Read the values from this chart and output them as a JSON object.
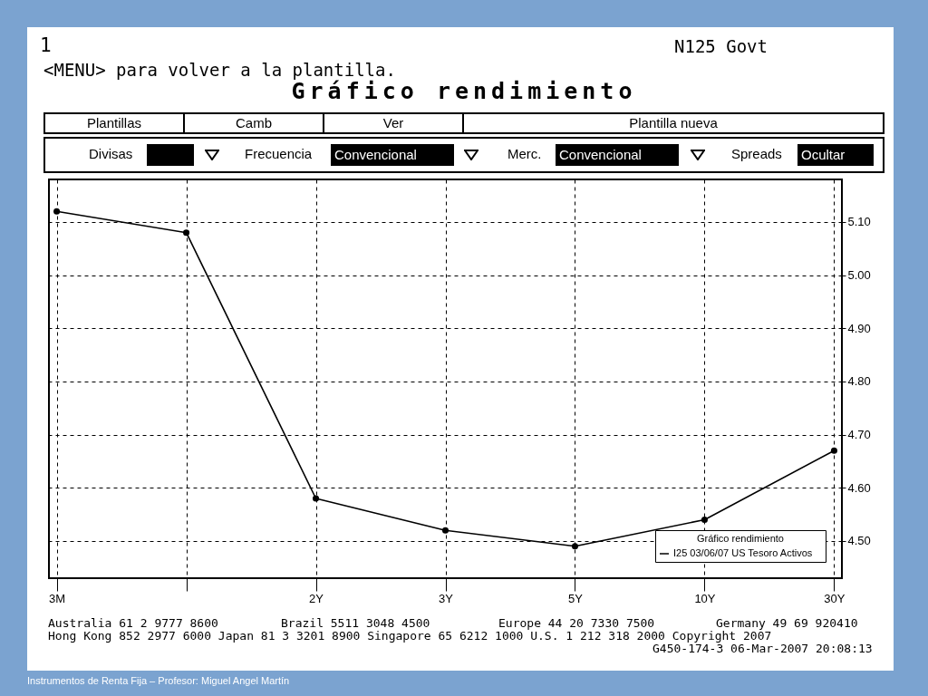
{
  "chart_data": {
    "type": "line",
    "title": "Gráfico rendimiento",
    "categories": [
      "3M",
      null,
      "2Y",
      "3Y",
      "5Y",
      "10Y",
      "30Y"
    ],
    "series": [
      {
        "name": "I25 03/06/07    US Tesoro Activos",
        "color": "#000000",
        "values": [
          5.12,
          5.08,
          4.58,
          4.52,
          4.49,
          4.54,
          4.67
        ]
      }
    ],
    "legend_title": "Gráfico rendimiento",
    "legend": "bottom right",
    "ylim": [
      4.43,
      5.18
    ],
    "yticks": [
      {
        "value": 4.5,
        "label": "4.50"
      },
      {
        "value": 4.6,
        "label": "4.60"
      },
      {
        "value": 4.7,
        "label": "4.70"
      },
      {
        "value": 4.8,
        "label": "4.80"
      },
      {
        "value": 4.9,
        "label": "4.90"
      },
      {
        "value": 5.0,
        "label": "5.00"
      },
      {
        "value": 5.1,
        "label": "5.10"
      }
    ],
    "grid": true,
    "marker": "circle",
    "line_style": "solid",
    "annotations": [
      "1",
      "N125 Govt",
      "<MENU> para volver a la plantilla.",
      "Plantillas",
      "Camb",
      "Ver",
      "Plantilla nueva",
      "Divisas",
      "Frecuencia",
      "Convencional",
      "Merc.",
      "Convencional",
      "Spreads",
      "Ocultar",
      "Australia 61 2 9777 8600",
      "Brazil 5511 3048 4500",
      "Europe 44 20 7330 7500",
      "Germany 49 69 920410",
      "Hong Kong 852 2977 6000 Japan 81 3 3201 8900 Singapore 65 6212 1000 U.S. 1 212 318 2000 Copyright 2007",
      "G450-174-3 06-Mar-2007 20:08:13",
      "Instrumentos de Renta Fija – Profesor: Miguel Angel Martín"
    ]
  }
}
